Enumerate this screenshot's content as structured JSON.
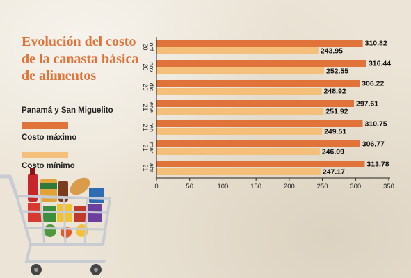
{
  "colors": {
    "max": "#e0733a",
    "min": "#f3bf7b"
  },
  "title": "Evolución del costo de la canasta básica de alimentos",
  "region": "Panamá y San Miguelito",
  "legend": {
    "max_label": "Costo máximo",
    "min_label": "Costo mínimo"
  },
  "chart_data": {
    "type": "bar",
    "orientation": "horizontal",
    "categories": [
      {
        "month": "oct",
        "year": "20"
      },
      {
        "month": "nov",
        "year": "20"
      },
      {
        "month": "dic",
        "year": "20"
      },
      {
        "month": "ene",
        "year": "21"
      },
      {
        "month": "feb",
        "year": "21"
      },
      {
        "month": "mar",
        "year": "21"
      },
      {
        "month": "abr",
        "year": "21"
      }
    ],
    "series": [
      {
        "name": "Costo máximo",
        "values": [
          310.82,
          316.44,
          306.22,
          297.61,
          310.75,
          306.77,
          313.78
        ],
        "labels": [
          "310.82",
          "316.44",
          "306.22",
          "297.61",
          "310.75",
          "306.77",
          "313.78"
        ]
      },
      {
        "name": "Costo mínimo",
        "values": [
          243.95,
          252.55,
          248.92,
          251.92,
          249.51,
          246.09,
          247.17
        ],
        "labels": [
          "243.95",
          "252.55",
          "248.92",
          "251.92",
          "249.51",
          "246.09",
          "247.17"
        ]
      }
    ],
    "xlim": [
      0,
      350
    ],
    "xticks": [
      0,
      50,
      100,
      150,
      200,
      250,
      300,
      350
    ],
    "grid": false,
    "legend_position": "left"
  }
}
